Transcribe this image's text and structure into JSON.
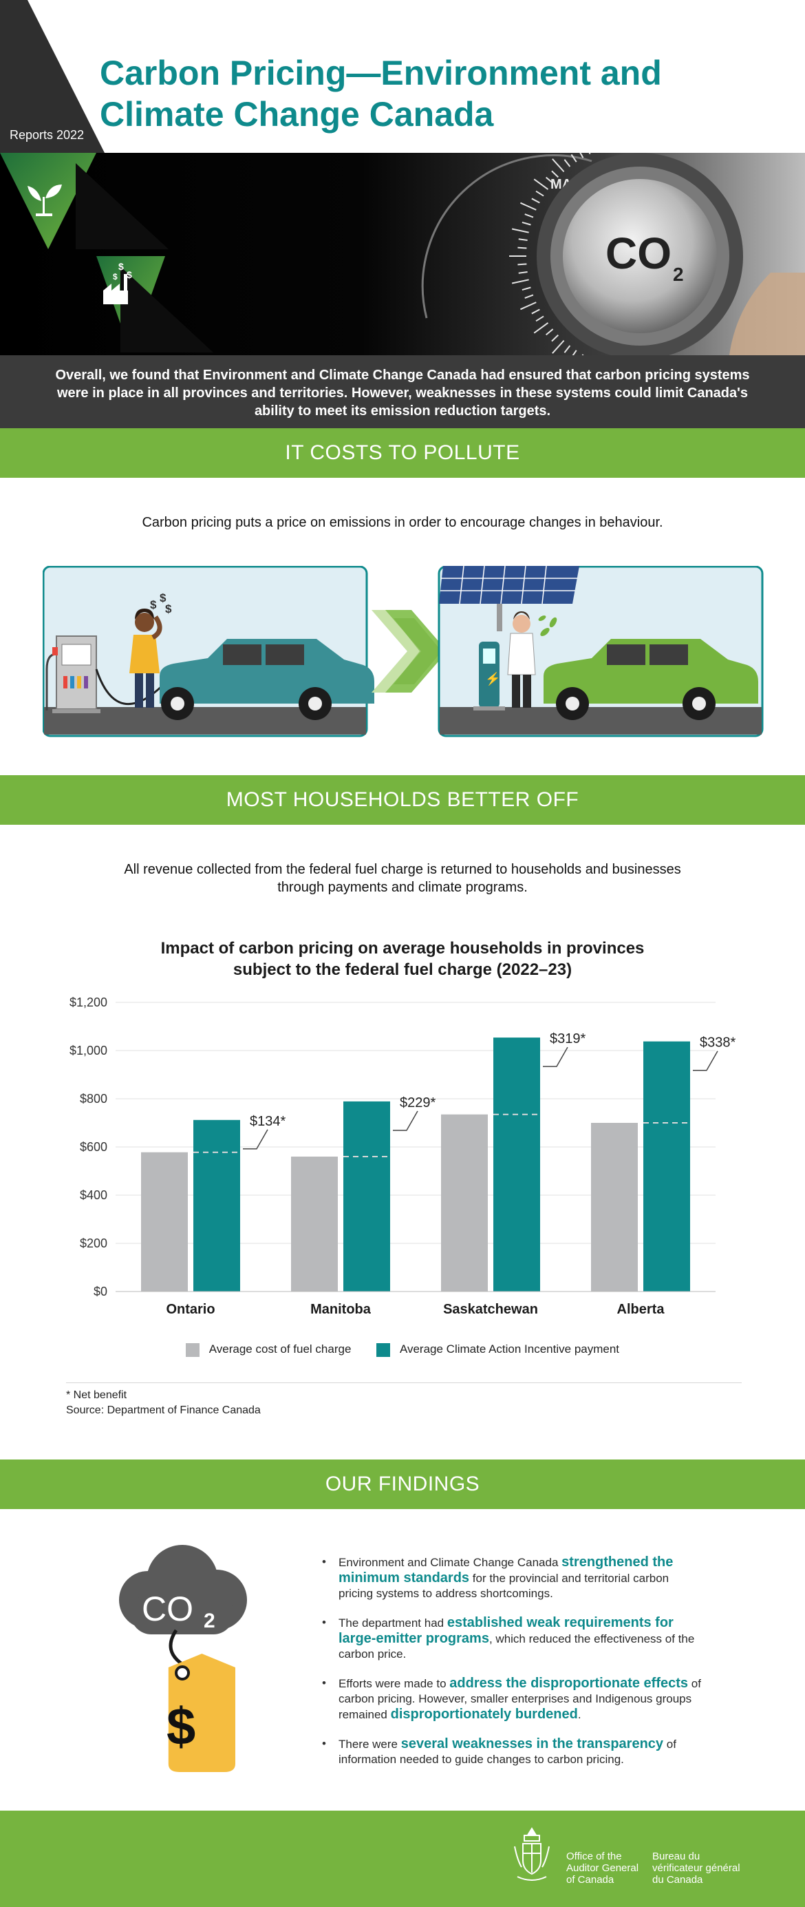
{
  "header": {
    "report_label": "Reports 2022",
    "title_line1": "Carbon Pricing—Environment and",
    "title_line2": "Climate Change Canada"
  },
  "hero": {
    "dial_text": "MA",
    "knob_text": "CO",
    "knob_sub": "2"
  },
  "summary": {
    "text": "Overall, we found that Environment and Climate Change Canada had ensured that carbon pricing systems were in place in all provinces and territories. However, weaknesses in these systems could limit Canada's ability to meet its emission reduction targets."
  },
  "section1": {
    "heading": "IT COSTS TO POLLUTE",
    "lead": "Carbon pricing puts a price on emissions in order to encourage changes in behaviour."
  },
  "section2": {
    "heading": "MOST HOUSEHOLDS BETTER OFF",
    "lead_line1": "All revenue collected from the federal fuel charge is returned to households and businesses",
    "lead_line2": "through payments and climate programs."
  },
  "chart_data": {
    "type": "bar",
    "title_line1": "Impact of carbon pricing on average households in provinces",
    "title_line2": "subject to the federal fuel charge (2022–23)",
    "categories": [
      "Ontario",
      "Manitoba",
      "Saskatchewan",
      "Alberta"
    ],
    "series": [
      {
        "name": "Average cost of fuel charge",
        "color": "#b8b9bb",
        "values": [
          578,
          560,
          735,
          700
        ]
      },
      {
        "name": "Average Climate Action Incentive payment",
        "color": "#0e8a8c",
        "values": [
          712,
          789,
          1054,
          1038
        ]
      }
    ],
    "annotations": [
      "$134*",
      "$229*",
      "$319*",
      "$338*"
    ],
    "ylim": [
      0,
      1200
    ],
    "yticks": [
      0,
      200,
      400,
      600,
      800,
      1000,
      1200
    ],
    "ytick_labels": [
      "$0",
      "$200",
      "$400",
      "$600",
      "$800",
      "$1,000",
      "$1,200"
    ],
    "grid": true,
    "legend_position": "bottom"
  },
  "notes": {
    "net_benefit": "* Net benefit",
    "source": "Source: Department of Finance Canada"
  },
  "section3": {
    "heading": "OUR FINDINGS",
    "cloud_text": "CO",
    "cloud_sub": "2",
    "tag_symbol": "$",
    "f1_a": "Environment and Climate Change Canada ",
    "f1_hl": "strengthened the minimum standards",
    "f1_b": " for the provincial and territorial carbon pricing systems to address shortcomings.",
    "f2_a": "The department had ",
    "f2_hl": "established weak requirements for large-emitter programs",
    "f2_b": ", which reduced the effectiveness of the carbon price.",
    "f3_a": "Efforts were made to ",
    "f3_hl1": "address the disproportionate effects",
    "f3_b": " of carbon pricing. However, smaller enterprises and Indigenous groups remained ",
    "f3_hl2": "disproportionately burdened",
    "f3_c": ".",
    "f4_a": "There were ",
    "f4_hl": "several weaknesses in the transparency",
    "f4_b": " of information needed to guide changes to carbon pricing."
  },
  "footer": {
    "en_line1": "Office of the",
    "en_line2": "Auditor General",
    "en_line3": "of Canada",
    "fr_line1": "Bureau du",
    "fr_line2": "vérificateur général",
    "fr_line3": "du Canada"
  },
  "colors": {
    "teal": "#0e8a8c",
    "green": "#76b43f",
    "dark": "#3b3b3b",
    "grey_bar": "#b8b9bb"
  }
}
